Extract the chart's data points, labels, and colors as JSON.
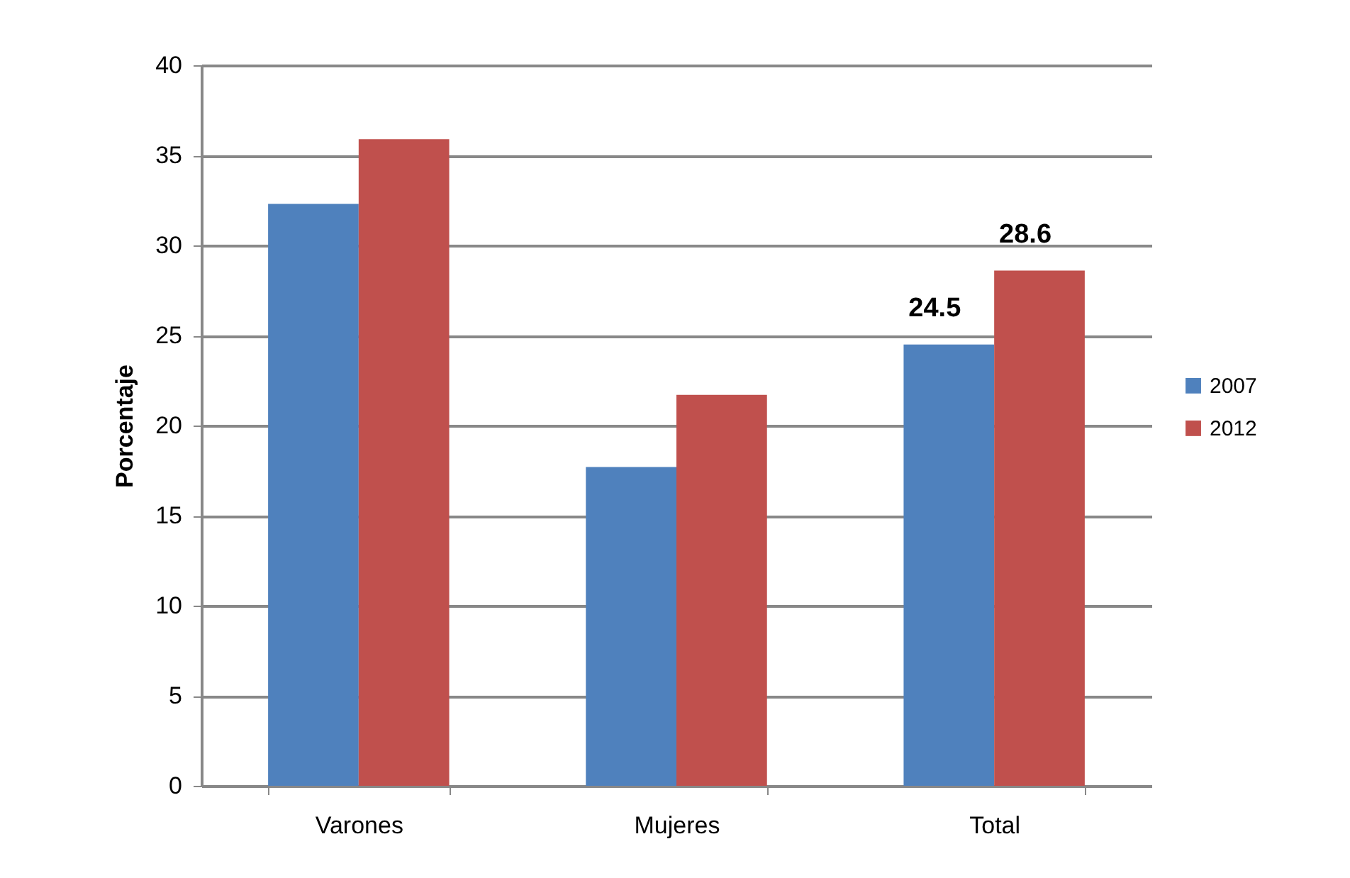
{
  "chart_data": {
    "type": "bar",
    "ylabel": "Porcentaje",
    "categories": [
      "Varones",
      "Mujeres",
      "Total"
    ],
    "series": [
      {
        "name": "2007",
        "color": "#4f81bd",
        "values": [
          32.3,
          17.7,
          24.5
        ],
        "value_labels": [
          null,
          null,
          "24.5"
        ]
      },
      {
        "name": "2012",
        "color": "#c0504d",
        "values": [
          35.9,
          21.7,
          28.6
        ],
        "value_labels": [
          null,
          null,
          "28.6"
        ]
      }
    ],
    "ylim": [
      0,
      40
    ],
    "yticks": [
      0,
      5,
      10,
      15,
      20,
      25,
      30,
      35,
      40
    ],
    "grid": "y",
    "legend": "right"
  }
}
